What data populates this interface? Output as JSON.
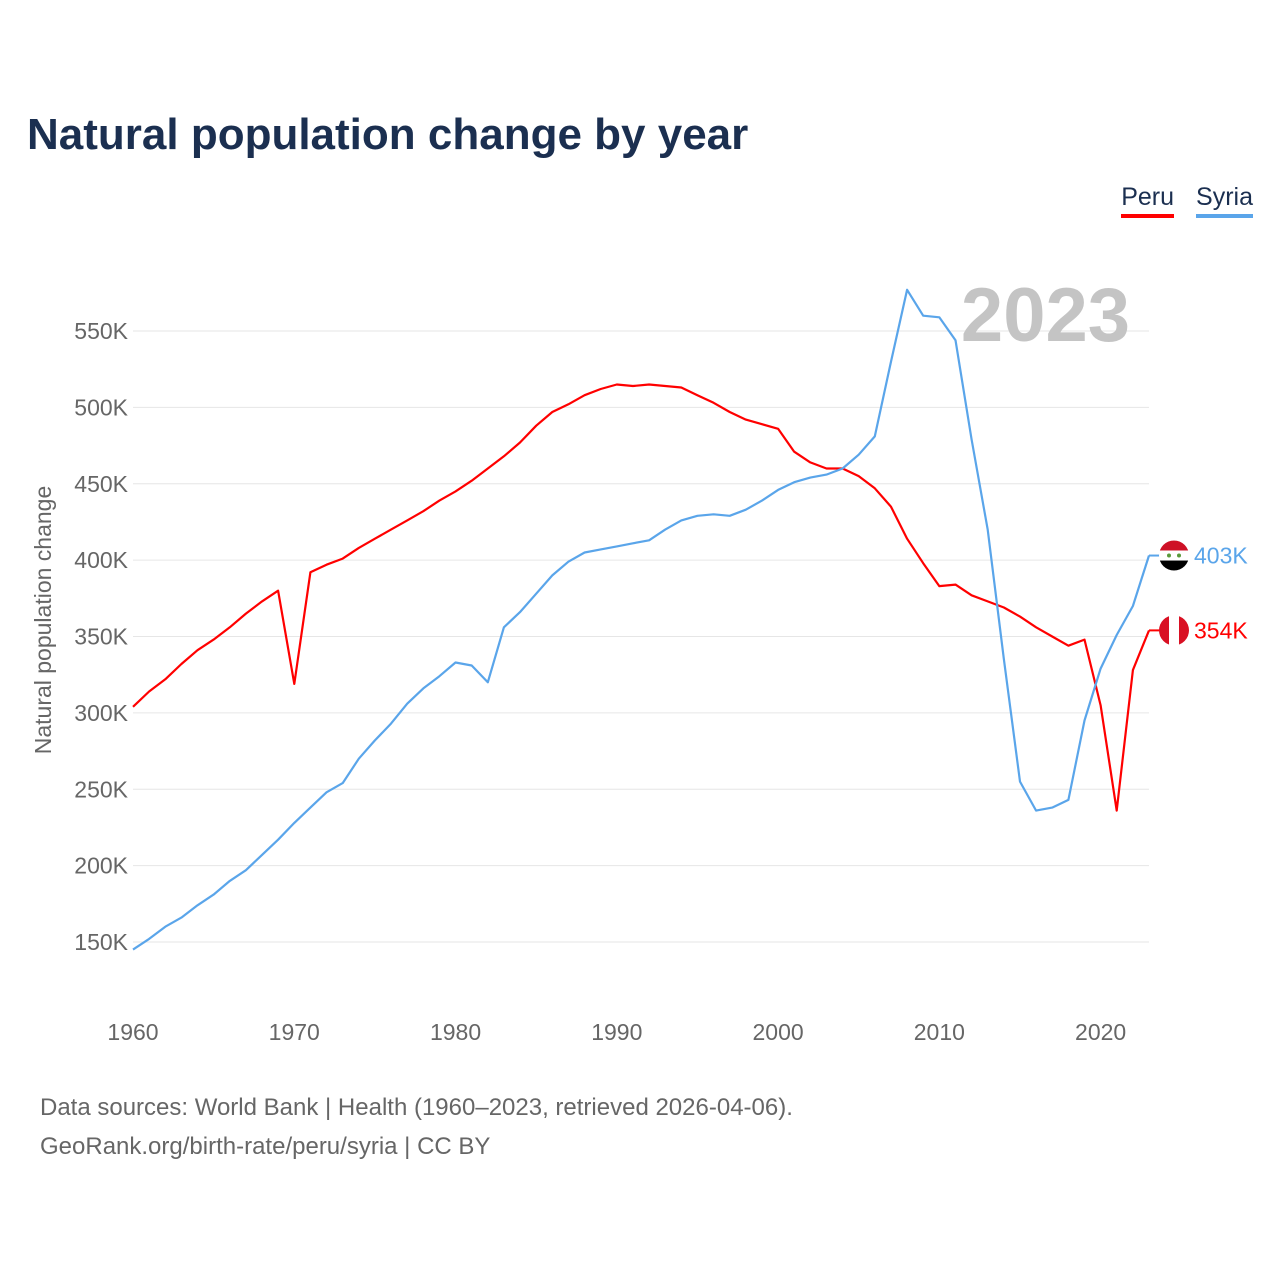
{
  "title": "Natural population change by year",
  "legend": [
    {
      "label": "Peru",
      "color": "#ff0000"
    },
    {
      "label": "Syria",
      "color": "#5aa5ea"
    }
  ],
  "year_watermark": "2023",
  "source_line1": "Data sources: World Bank | Health (1960–2023, retrieved 2026-04-06).",
  "source_line2": "GeoRank.org/birth-rate/peru/syria | CC BY",
  "chart_data": {
    "type": "line",
    "title": "Natural population change by year",
    "xlabel": "",
    "ylabel": "Natural population change",
    "xlim": [
      1960,
      2023
    ],
    "ylim": [
      120,
      590
    ],
    "x_ticks": [
      1960,
      1970,
      1980,
      1990,
      2000,
      2010,
      2020
    ],
    "y_ticks": [
      150,
      200,
      250,
      300,
      350,
      400,
      450,
      500,
      550
    ],
    "y_tick_labels": [
      "150K",
      "200K",
      "250K",
      "300K",
      "350K",
      "400K",
      "450K",
      "500K",
      "550K"
    ],
    "grid": true,
    "legend_position": "top-right",
    "unit": "thousands",
    "x": [
      1960,
      1961,
      1962,
      1963,
      1964,
      1965,
      1966,
      1967,
      1968,
      1969,
      1970,
      1971,
      1972,
      1973,
      1974,
      1975,
      1976,
      1977,
      1978,
      1979,
      1980,
      1981,
      1982,
      1983,
      1984,
      1985,
      1986,
      1987,
      1988,
      1989,
      1990,
      1991,
      1992,
      1993,
      1994,
      1995,
      1996,
      1997,
      1998,
      1999,
      2000,
      2001,
      2002,
      2003,
      2004,
      2005,
      2006,
      2007,
      2008,
      2009,
      2010,
      2011,
      2012,
      2013,
      2014,
      2015,
      2016,
      2017,
      2018,
      2019,
      2020,
      2021,
      2022,
      2023
    ],
    "series": [
      {
        "name": "Peru",
        "color": "#ff0000",
        "end_label": "354K",
        "values": [
          304,
          314,
          322,
          332,
          341,
          348,
          356,
          365,
          373,
          380,
          319,
          392,
          397,
          401,
          408,
          414,
          420,
          426,
          432,
          439,
          445,
          452,
          460,
          468,
          477,
          488,
          497,
          502,
          508,
          512,
          515,
          514,
          515,
          514,
          513,
          508,
          503,
          497,
          492,
          489,
          486,
          471,
          464,
          460,
          460,
          455,
          447,
          435,
          414,
          398,
          383,
          384,
          377,
          373,
          369,
          363,
          356,
          350,
          344,
          348,
          305,
          236,
          328,
          354
        ]
      },
      {
        "name": "Syria",
        "color": "#5aa5ea",
        "end_label": "403K",
        "values": [
          145,
          152,
          160,
          166,
          174,
          181,
          190,
          197,
          207,
          217,
          228,
          238,
          248,
          254,
          270,
          282,
          293,
          306,
          316,
          324,
          333,
          331,
          320,
          356,
          366,
          378,
          390,
          399,
          405,
          407,
          409,
          411,
          413,
          420,
          426,
          429,
          430,
          429,
          433,
          439,
          446,
          451,
          454,
          456,
          460,
          469,
          481,
          530,
          577,
          560,
          559,
          544,
          479,
          420,
          335,
          255,
          236,
          238,
          243,
          295,
          329,
          351,
          370,
          403
        ]
      }
    ]
  }
}
